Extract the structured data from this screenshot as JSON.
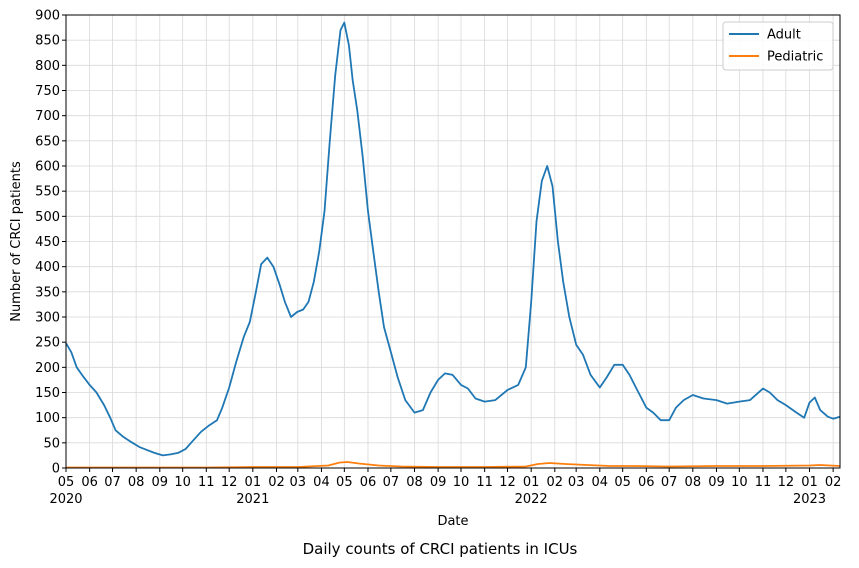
{
  "caption": "Daily counts of CRCI patients in ICUs",
  "chart_data": {
    "type": "line",
    "title": "",
    "xlabel": "Date",
    "ylabel": "Number of CRCI patients",
    "ylim": [
      0,
      900
    ],
    "xlim": [
      "2020-05-01",
      "2023-02-10"
    ],
    "yticks": [
      0,
      50,
      100,
      150,
      200,
      250,
      300,
      350,
      400,
      450,
      500,
      550,
      600,
      650,
      700,
      750,
      800,
      850,
      900
    ],
    "xticks": [
      {
        "date": "2020-05-01",
        "label": "05",
        "year": "2020"
      },
      {
        "date": "2020-06-01",
        "label": "06"
      },
      {
        "date": "2020-07-01",
        "label": "07"
      },
      {
        "date": "2020-08-01",
        "label": "08"
      },
      {
        "date": "2020-09-01",
        "label": "09"
      },
      {
        "date": "2020-10-01",
        "label": "10"
      },
      {
        "date": "2020-11-01",
        "label": "11"
      },
      {
        "date": "2020-12-01",
        "label": "12"
      },
      {
        "date": "2021-01-01",
        "label": "01",
        "year": "2021"
      },
      {
        "date": "2021-02-01",
        "label": "02"
      },
      {
        "date": "2021-03-01",
        "label": "03"
      },
      {
        "date": "2021-04-01",
        "label": "04"
      },
      {
        "date": "2021-05-01",
        "label": "05"
      },
      {
        "date": "2021-06-01",
        "label": "06"
      },
      {
        "date": "2021-07-01",
        "label": "07"
      },
      {
        "date": "2021-08-01",
        "label": "08"
      },
      {
        "date": "2021-09-01",
        "label": "09"
      },
      {
        "date": "2021-10-01",
        "label": "10"
      },
      {
        "date": "2021-11-01",
        "label": "11"
      },
      {
        "date": "2021-12-01",
        "label": "12"
      },
      {
        "date": "2022-01-01",
        "label": "01",
        "year": "2022"
      },
      {
        "date": "2022-02-01",
        "label": "02"
      },
      {
        "date": "2022-03-01",
        "label": "03"
      },
      {
        "date": "2022-04-01",
        "label": "04"
      },
      {
        "date": "2022-05-01",
        "label": "05"
      },
      {
        "date": "2022-06-01",
        "label": "06"
      },
      {
        "date": "2022-07-01",
        "label": "07"
      },
      {
        "date": "2022-08-01",
        "label": "08"
      },
      {
        "date": "2022-09-01",
        "label": "09"
      },
      {
        "date": "2022-10-01",
        "label": "10"
      },
      {
        "date": "2022-11-01",
        "label": "11"
      },
      {
        "date": "2022-12-01",
        "label": "12"
      },
      {
        "date": "2023-01-01",
        "label": "01",
        "year": "2023"
      },
      {
        "date": "2023-02-01",
        "label": "02"
      }
    ],
    "grid": true,
    "legend": "top-right",
    "series": [
      {
        "name": "Adult",
        "color": "#1f77b4",
        "points": [
          [
            "2020-05-01",
            248
          ],
          [
            "2020-05-08",
            230
          ],
          [
            "2020-05-15",
            200
          ],
          [
            "2020-05-22",
            185
          ],
          [
            "2020-06-01",
            165
          ],
          [
            "2020-06-10",
            150
          ],
          [
            "2020-06-20",
            125
          ],
          [
            "2020-06-28",
            100
          ],
          [
            "2020-07-05",
            75
          ],
          [
            "2020-07-15",
            62
          ],
          [
            "2020-07-25",
            52
          ],
          [
            "2020-08-05",
            42
          ],
          [
            "2020-08-15",
            36
          ],
          [
            "2020-08-25",
            30
          ],
          [
            "2020-09-05",
            25
          ],
          [
            "2020-09-15",
            27
          ],
          [
            "2020-09-25",
            30
          ],
          [
            "2020-10-05",
            38
          ],
          [
            "2020-10-15",
            55
          ],
          [
            "2020-10-25",
            72
          ],
          [
            "2020-11-05",
            85
          ],
          [
            "2020-11-15",
            95
          ],
          [
            "2020-11-22",
            120
          ],
          [
            "2020-12-01",
            160
          ],
          [
            "2020-12-10",
            210
          ],
          [
            "2020-12-20",
            260
          ],
          [
            "2020-12-28",
            290
          ],
          [
            "2021-01-05",
            350
          ],
          [
            "2021-01-12",
            405
          ],
          [
            "2021-01-20",
            418
          ],
          [
            "2021-01-28",
            400
          ],
          [
            "2021-02-05",
            365
          ],
          [
            "2021-02-12",
            330
          ],
          [
            "2021-02-20",
            300
          ],
          [
            "2021-02-28",
            310
          ],
          [
            "2021-03-08",
            315
          ],
          [
            "2021-03-15",
            330
          ],
          [
            "2021-03-22",
            370
          ],
          [
            "2021-03-29",
            430
          ],
          [
            "2021-04-05",
            510
          ],
          [
            "2021-04-12",
            650
          ],
          [
            "2021-04-19",
            780
          ],
          [
            "2021-04-26",
            870
          ],
          [
            "2021-05-01",
            885
          ],
          [
            "2021-05-07",
            840
          ],
          [
            "2021-05-12",
            770
          ],
          [
            "2021-05-18",
            710
          ],
          [
            "2021-05-25",
            620
          ],
          [
            "2021-06-01",
            510
          ],
          [
            "2021-06-08",
            430
          ],
          [
            "2021-06-15",
            350
          ],
          [
            "2021-06-22",
            280
          ],
          [
            "2021-07-01",
            230
          ],
          [
            "2021-07-10",
            180
          ],
          [
            "2021-07-20",
            135
          ],
          [
            "2021-08-01",
            110
          ],
          [
            "2021-08-12",
            115
          ],
          [
            "2021-08-22",
            150
          ],
          [
            "2021-09-01",
            175
          ],
          [
            "2021-09-10",
            188
          ],
          [
            "2021-09-20",
            185
          ],
          [
            "2021-10-01",
            165
          ],
          [
            "2021-10-10",
            158
          ],
          [
            "2021-10-20",
            138
          ],
          [
            "2021-11-01",
            132
          ],
          [
            "2021-11-15",
            135
          ],
          [
            "2021-12-01",
            155
          ],
          [
            "2021-12-15",
            165
          ],
          [
            "2021-12-25",
            200
          ],
          [
            "2022-01-01",
            330
          ],
          [
            "2022-01-08",
            490
          ],
          [
            "2022-01-15",
            570
          ],
          [
            "2022-01-22",
            600
          ],
          [
            "2022-01-29",
            560
          ],
          [
            "2022-02-05",
            450
          ],
          [
            "2022-02-12",
            370
          ],
          [
            "2022-02-20",
            300
          ],
          [
            "2022-03-01",
            245
          ],
          [
            "2022-03-10",
            225
          ],
          [
            "2022-03-20",
            185
          ],
          [
            "2022-04-01",
            160
          ],
          [
            "2022-04-10",
            180
          ],
          [
            "2022-04-20",
            205
          ],
          [
            "2022-05-01",
            205
          ],
          [
            "2022-05-10",
            185
          ],
          [
            "2022-05-20",
            155
          ],
          [
            "2022-06-01",
            120
          ],
          [
            "2022-06-10",
            110
          ],
          [
            "2022-06-20",
            95
          ],
          [
            "2022-07-01",
            95
          ],
          [
            "2022-07-10",
            120
          ],
          [
            "2022-07-20",
            135
          ],
          [
            "2022-08-01",
            145
          ],
          [
            "2022-08-15",
            138
          ],
          [
            "2022-09-01",
            135
          ],
          [
            "2022-09-15",
            128
          ],
          [
            "2022-10-01",
            132
          ],
          [
            "2022-10-15",
            135
          ],
          [
            "2022-11-01",
            158
          ],
          [
            "2022-11-10",
            150
          ],
          [
            "2022-11-20",
            135
          ],
          [
            "2022-12-01",
            125
          ],
          [
            "2022-12-15",
            110
          ],
          [
            "2022-12-25",
            100
          ],
          [
            "2023-01-01",
            130
          ],
          [
            "2023-01-08",
            140
          ],
          [
            "2023-01-15",
            115
          ],
          [
            "2023-01-25",
            102
          ],
          [
            "2023-02-01",
            98
          ],
          [
            "2023-02-10",
            102
          ]
        ]
      },
      {
        "name": "Pediatric",
        "color": "#ff7f0e",
        "points": [
          [
            "2020-05-01",
            1
          ],
          [
            "2020-08-01",
            1
          ],
          [
            "2020-11-01",
            1
          ],
          [
            "2021-01-01",
            2
          ],
          [
            "2021-03-01",
            2
          ],
          [
            "2021-04-10",
            5
          ],
          [
            "2021-04-25",
            11
          ],
          [
            "2021-05-05",
            12
          ],
          [
            "2021-05-20",
            9
          ],
          [
            "2021-06-15",
            5
          ],
          [
            "2021-07-15",
            3
          ],
          [
            "2021-09-01",
            2
          ],
          [
            "2021-11-01",
            2
          ],
          [
            "2021-12-25",
            3
          ],
          [
            "2022-01-10",
            8
          ],
          [
            "2022-01-25",
            10
          ],
          [
            "2022-02-15",
            8
          ],
          [
            "2022-03-15",
            6
          ],
          [
            "2022-04-15",
            4
          ],
          [
            "2022-05-15",
            4
          ],
          [
            "2022-07-01",
            3
          ],
          [
            "2022-09-01",
            4
          ],
          [
            "2022-11-01",
            4
          ],
          [
            "2023-01-01",
            5
          ],
          [
            "2023-01-15",
            6
          ],
          [
            "2023-02-10",
            4
          ]
        ]
      }
    ]
  }
}
